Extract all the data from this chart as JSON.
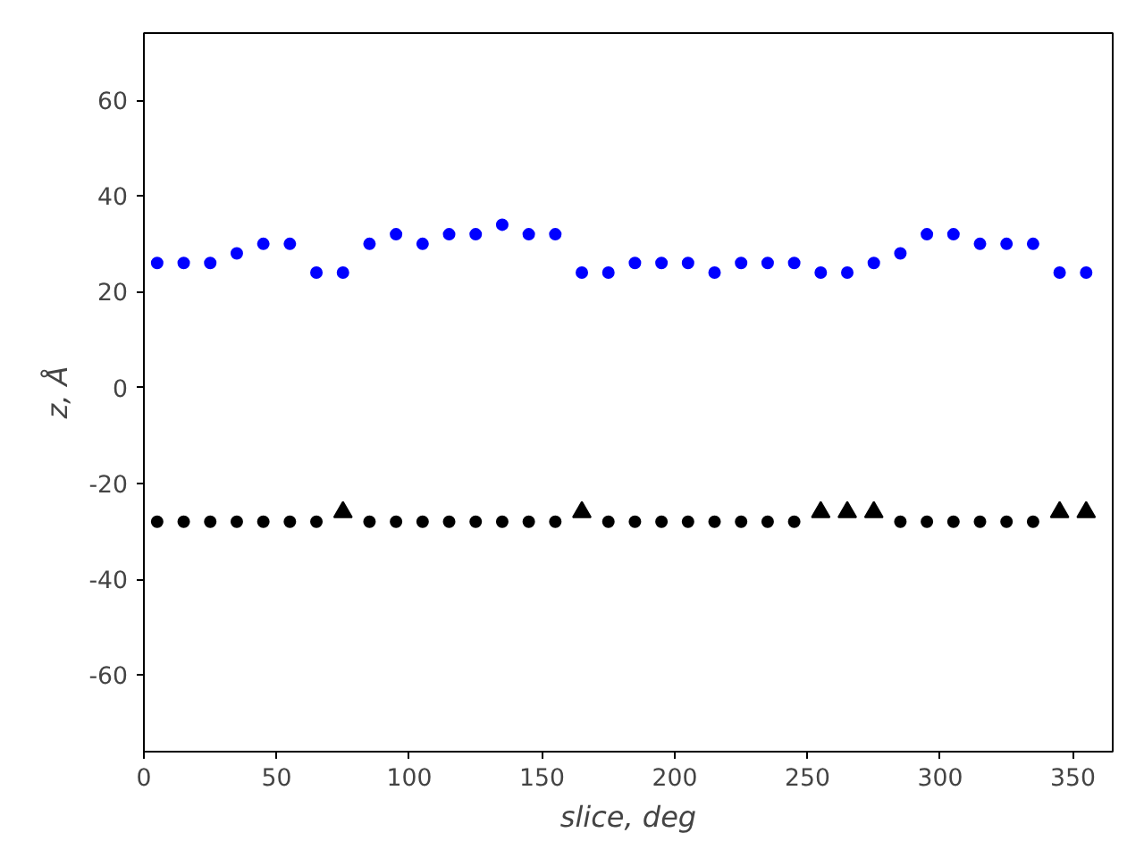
{
  "chart_data": {
    "type": "scatter",
    "xlabel": "slice, deg",
    "ylabel": "z, Å",
    "xlim": [
      0,
      365
    ],
    "ylim": [
      -76,
      74
    ],
    "xticks": [
      0,
      50,
      100,
      150,
      200,
      250,
      300,
      350
    ],
    "yticks": [
      -60,
      -40,
      -20,
      0,
      20,
      40,
      60
    ],
    "grid": false,
    "series": [
      {
        "color": "#0000ff",
        "marker": "circle",
        "x": [
          5,
          15,
          25,
          35,
          45,
          55,
          65,
          75,
          85,
          95,
          105,
          115,
          125,
          135,
          145,
          155,
          165,
          175,
          185,
          195,
          205,
          215,
          225,
          235,
          245,
          255,
          265,
          275,
          285,
          295,
          305,
          315,
          325,
          335,
          345,
          355
        ],
        "values": [
          26,
          26,
          26,
          28,
          30,
          30,
          24,
          24,
          30,
          32,
          30,
          32,
          32,
          34,
          32,
          32,
          24,
          24,
          26,
          26,
          26,
          24,
          26,
          26,
          26,
          24,
          24,
          26,
          28,
          32,
          32,
          30,
          30,
          30,
          24,
          24
        ]
      },
      {
        "color": "#000000",
        "marker": "circle",
        "x": [
          5,
          15,
          25,
          35,
          45,
          55,
          65,
          85,
          95,
          105,
          115,
          125,
          135,
          145,
          155,
          175,
          185,
          195,
          205,
          215,
          225,
          235,
          245,
          285,
          295,
          305,
          315,
          325,
          335
        ],
        "values": [
          -28,
          -28,
          -28,
          -28,
          -28,
          -28,
          -28,
          -28,
          -28,
          -28,
          -28,
          -28,
          -28,
          -28,
          -28,
          -28,
          -28,
          -28,
          -28,
          -28,
          -28,
          -28,
          -28,
          -28,
          -28,
          -28,
          -28,
          -28,
          -28
        ]
      },
      {
        "color": "#000000",
        "marker": "triangle",
        "x": [
          75,
          165,
          255,
          265,
          275,
          345,
          355
        ],
        "values": [
          -26,
          -26,
          -26,
          -26,
          -26,
          -26,
          -26
        ]
      }
    ]
  }
}
